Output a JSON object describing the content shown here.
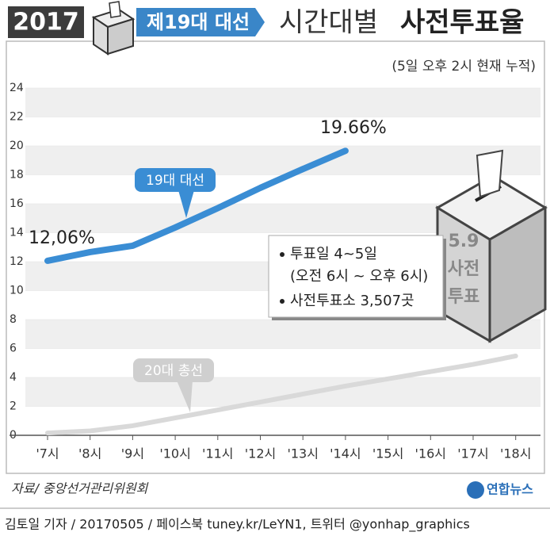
{
  "header": {
    "year": "2017",
    "election": "제19대 대선",
    "title_light": "시간대별",
    "title_bold": "사전투표율",
    "subtitle": "(5일 오후 2시 현재 누적)"
  },
  "info_box": {
    "lines": [
      "투표일 4~5일",
      "(오전 6시 ~ 오후 6시)",
      "사전투표소 3,507곳"
    ]
  },
  "ballot_box": {
    "lines": [
      "5.9",
      "사전",
      "투표"
    ]
  },
  "source": "자료/ 중앙선거관리위원회",
  "logo": "연합뉴스",
  "credit": "김토일 기자 / 20170505 / 페이스북 tuney.kr/LeYN1, 트위터 @yonhap_graphics",
  "chart_data": {
    "type": "line",
    "categories": [
      "'7시",
      "'8시",
      "'9시",
      "'10시",
      "'11시",
      "'12시",
      "'13시",
      "'14시",
      "'15시",
      "'16시",
      "'17시",
      "'18시"
    ],
    "series": [
      {
        "name": "19대 대선",
        "color": "#3a8dd4",
        "values": [
          12.06,
          12.66,
          13.1,
          14.36,
          15.7,
          17.1,
          18.4,
          19.66,
          null,
          null,
          null,
          null
        ],
        "value_labels": [
          "12,06%",
          null,
          null,
          null,
          null,
          null,
          null,
          "19.66%",
          null,
          null,
          null,
          null
        ]
      },
      {
        "name": "20대 총선",
        "color": "#d9d9d9",
        "values": [
          0.16,
          0.3,
          0.66,
          1.2,
          1.75,
          2.3,
          2.85,
          3.4,
          3.9,
          4.4,
          4.9,
          5.48
        ]
      }
    ],
    "ylim": [
      0,
      24
    ],
    "yticks": [
      0,
      2,
      4,
      6,
      8,
      10,
      12,
      14,
      16,
      18,
      20,
      22,
      24
    ],
    "grid": true
  }
}
